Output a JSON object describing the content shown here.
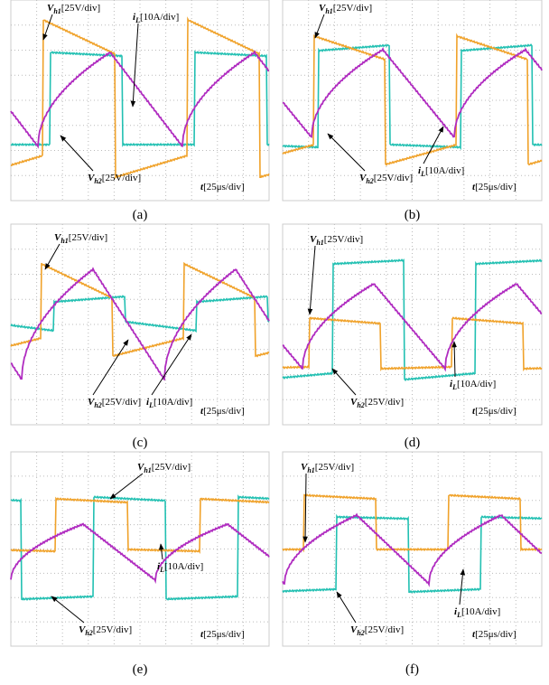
{
  "panels": [
    {
      "caption": "(a)",
      "annotations": [
        {
          "symbol": "V",
          "sub": "h1",
          "scale": "[25V/div]"
        },
        {
          "symbol": "V",
          "sub": "h2",
          "scale": "[25V/div]"
        },
        {
          "symbol": "i",
          "sub": "L",
          "scale": "[10A/div]"
        },
        {
          "symbol": "t",
          "scale": "[25μs/div]"
        }
      ]
    },
    {
      "caption": "(b)",
      "annotations": [
        {
          "symbol": "V",
          "sub": "h1",
          "scale": "[25V/div]"
        },
        {
          "symbol": "V",
          "sub": "h2",
          "scale": "[25V/div]"
        },
        {
          "symbol": "i",
          "sub": "L",
          "scale": "[10A/div]"
        },
        {
          "symbol": "t",
          "scale": "[25μs/div]"
        }
      ]
    },
    {
      "caption": "(c)",
      "annotations": [
        {
          "symbol": "V",
          "sub": "h1",
          "scale": "[25V/div]"
        },
        {
          "symbol": "V",
          "sub": "h2",
          "scale": "[25V/div]"
        },
        {
          "symbol": "i",
          "sub": "L",
          "scale": "[10A/div]"
        },
        {
          "symbol": "t",
          "scale": "[25μs/div]"
        }
      ]
    },
    {
      "caption": "(d)",
      "annotations": [
        {
          "symbol": "V",
          "sub": "h1",
          "scale": "[25V/div]"
        },
        {
          "symbol": "V",
          "sub": "h2",
          "scale": "[25V/div]"
        },
        {
          "symbol": "i",
          "sub": "L",
          "scale": "[10A/div]"
        },
        {
          "symbol": "t",
          "scale": "[25μs/div]"
        }
      ]
    },
    {
      "caption": "(e)",
      "annotations": [
        {
          "symbol": "V",
          "sub": "h1",
          "scale": "[25V/div]"
        },
        {
          "symbol": "V",
          "sub": "h2",
          "scale": "[25V/div]"
        },
        {
          "symbol": "i",
          "sub": "L",
          "scale": "[10A/div]"
        },
        {
          "symbol": "t",
          "scale": "[25μs/div]"
        }
      ]
    },
    {
      "caption": "(f)",
      "annotations": [
        {
          "symbol": "V",
          "sub": "h1",
          "scale": "[25V/div]"
        },
        {
          "symbol": "V",
          "sub": "h2",
          "scale": "[25V/div]"
        },
        {
          "symbol": "i",
          "sub": "L",
          "scale": "[10A/div]"
        },
        {
          "symbol": "t",
          "scale": "[25μs/div]"
        }
      ]
    }
  ]
}
